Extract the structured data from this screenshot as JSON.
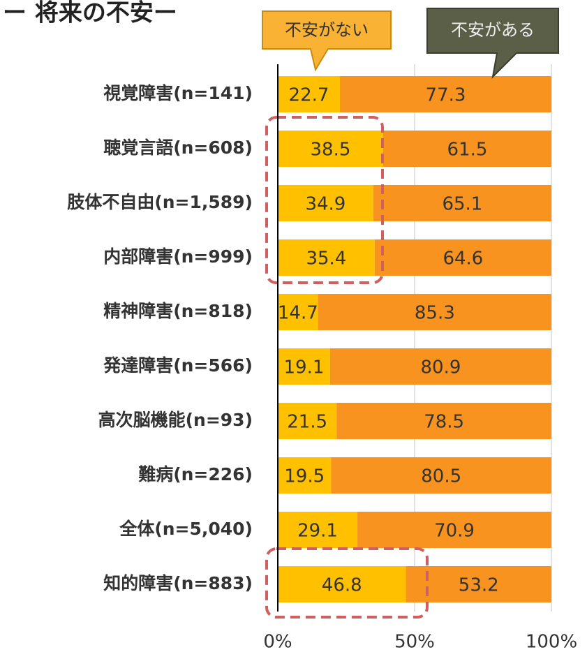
{
  "chart_data": {
    "type": "stacked_bar_horizontal",
    "title": "ー 将来の不安ー",
    "categories": [
      "視覚障害(n=141)",
      "聴覚言語(n=608)",
      "肢体不自由(n=1,589)",
      "内部障害(n=999)",
      "精神障害(n=818)",
      "発達障害(n=566)",
      "高次脳機能(n=93)",
      "難病(n=226)",
      "全体(n=5,040)",
      "知的障害(n=883)"
    ],
    "series": [
      {
        "name": "不安がない",
        "color": "#ffc000",
        "values": [
          22.7,
          38.5,
          34.9,
          35.4,
          14.7,
          19.1,
          21.5,
          19.5,
          29.1,
          46.8
        ]
      },
      {
        "name": "不安がある",
        "color": "#f7931e",
        "values": [
          77.3,
          61.5,
          65.1,
          64.6,
          85.3,
          80.9,
          78.5,
          80.5,
          70.9,
          53.2
        ]
      }
    ],
    "xlim": [
      0,
      100
    ],
    "xticks": [
      {
        "value": 0,
        "label": "0%"
      },
      {
        "value": 50,
        "label": "50%"
      },
      {
        "value": 100,
        "label": "100%"
      }
    ],
    "grid": true
  }
}
